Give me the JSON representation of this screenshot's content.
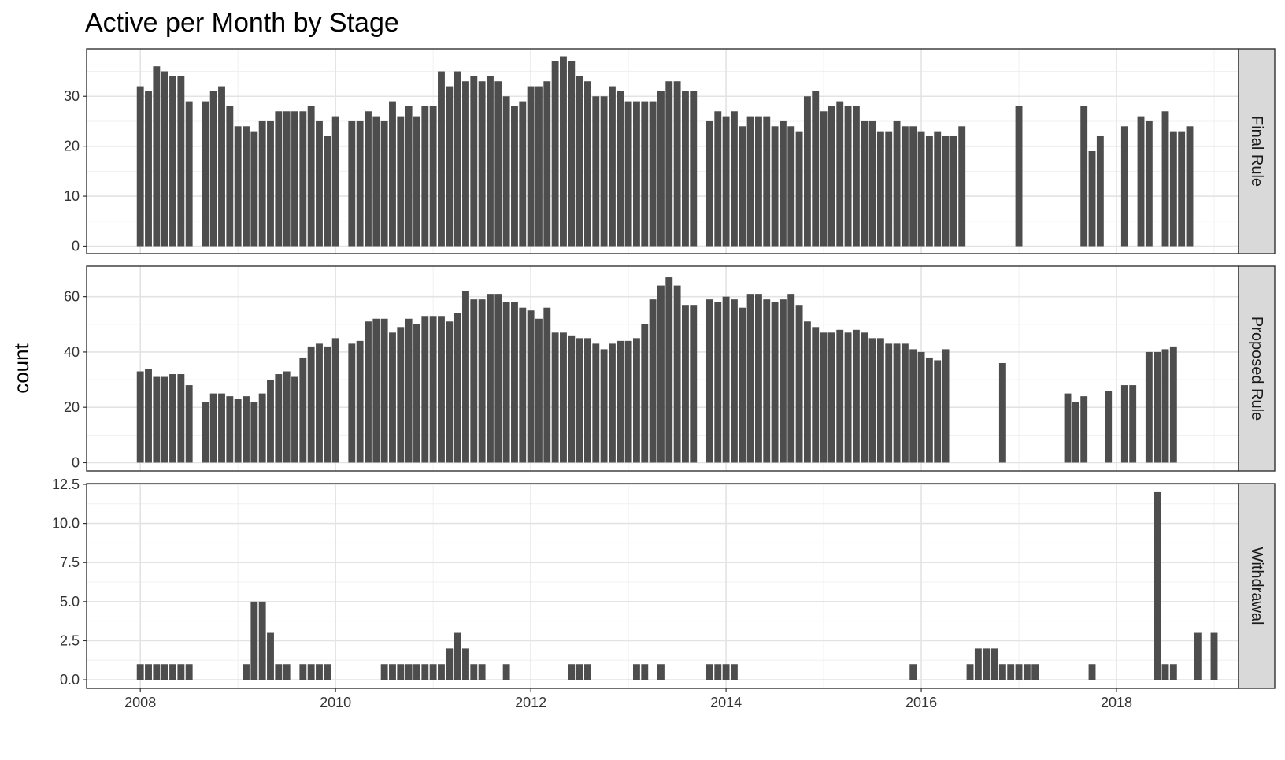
{
  "chart_data": {
    "type": "bar",
    "title": "Active per Month by Stage",
    "xlabel": "",
    "ylabel": "count",
    "facet_layout": "rows",
    "grid": true,
    "bar_color": "#4d4d4d",
    "strip_fill": "#d9d9d9",
    "xlim": [
      2007.45,
      2019.25
    ],
    "x_ticks": [
      2008,
      2010,
      2012,
      2014,
      2016,
      2018
    ],
    "x_tick_labels": [
      "2008",
      "2010",
      "2012",
      "2014",
      "2016",
      "2018"
    ],
    "panels": [
      {
        "strip": "Final Rule",
        "ylim": [
          -1.5,
          39.5
        ],
        "y_ticks": [
          0,
          10,
          20,
          30
        ],
        "y_tick_labels": [
          "0",
          "10",
          "20",
          "30"
        ],
        "start": [
          2008,
          1
        ],
        "values": [
          32,
          31,
          36,
          35,
          34,
          34,
          29,
          null,
          29,
          31,
          32,
          28,
          24,
          24,
          23,
          25,
          25,
          27,
          27,
          27,
          27,
          28,
          25,
          22,
          26,
          null,
          25,
          25,
          27,
          26,
          25,
          29,
          26,
          28,
          26,
          28,
          28,
          35,
          32,
          35,
          33,
          34,
          33,
          34,
          33,
          30,
          28,
          29,
          32,
          32,
          33,
          37,
          38,
          37,
          34,
          33,
          30,
          30,
          32,
          31,
          29,
          29,
          29,
          29,
          31,
          33,
          33,
          31,
          31,
          null,
          25,
          27,
          26,
          27,
          24,
          26,
          26,
          26,
          24,
          25,
          24,
          23,
          30,
          31,
          27,
          28,
          29,
          28,
          28,
          25,
          25,
          23,
          23,
          25,
          24,
          24,
          23,
          22,
          23,
          22,
          22,
          24,
          null,
          null,
          null,
          null,
          null,
          null,
          28,
          null,
          null,
          null,
          null,
          null,
          null,
          null,
          28,
          19,
          22,
          null,
          null,
          24,
          null,
          26,
          25,
          null,
          27,
          23,
          23,
          24
        ]
      },
      {
        "strip": "Proposed Rule",
        "ylim": [
          -3,
          71
        ],
        "y_ticks": [
          0,
          20,
          40,
          60
        ],
        "y_tick_labels": [
          "0",
          "20",
          "40",
          "60"
        ],
        "start": [
          2008,
          1
        ],
        "values": [
          33,
          34,
          31,
          31,
          32,
          32,
          28,
          null,
          22,
          25,
          25,
          24,
          23,
          24,
          22,
          25,
          30,
          32,
          33,
          31,
          38,
          42,
          43,
          42,
          45,
          null,
          43,
          44,
          51,
          52,
          52,
          47,
          49,
          52,
          50,
          53,
          53,
          53,
          51,
          54,
          62,
          59,
          59,
          61,
          61,
          58,
          58,
          56,
          55,
          52,
          56,
          47,
          47,
          46,
          45,
          45,
          43,
          41,
          43,
          44,
          44,
          45,
          50,
          59,
          64,
          67,
          64,
          57,
          57,
          null,
          59,
          58,
          60,
          59,
          56,
          61,
          61,
          59,
          58,
          59,
          61,
          57,
          51,
          49,
          47,
          47,
          48,
          47,
          48,
          47,
          45,
          45,
          43,
          43,
          43,
          41,
          40,
          38,
          37,
          41,
          null,
          null,
          null,
          null,
          null,
          null,
          36,
          null,
          null,
          null,
          null,
          null,
          null,
          null,
          25,
          22,
          24,
          null,
          null,
          26,
          null,
          28,
          28,
          null,
          40,
          40,
          41,
          42
        ]
      },
      {
        "strip": "Withdrawal",
        "ylim": [
          -0.55,
          12.55
        ],
        "y_ticks": [
          0,
          2.5,
          5,
          7.5,
          10,
          12.5
        ],
        "y_tick_labels": [
          "0.0",
          "2.5",
          "5.0",
          "7.5",
          "10.0",
          "12.5"
        ],
        "start": [
          2008,
          1
        ],
        "values": [
          1,
          1,
          1,
          1,
          1,
          1,
          1,
          null,
          null,
          null,
          null,
          null,
          null,
          1,
          5,
          5,
          3,
          1,
          1,
          null,
          1,
          1,
          1,
          1,
          null,
          null,
          null,
          null,
          null,
          null,
          1,
          1,
          1,
          1,
          1,
          1,
          1,
          1,
          2,
          3,
          2,
          1,
          1,
          null,
          null,
          1,
          null,
          null,
          null,
          null,
          null,
          null,
          null,
          1,
          1,
          1,
          null,
          null,
          null,
          null,
          null,
          1,
          1,
          null,
          1,
          null,
          null,
          null,
          null,
          null,
          1,
          1,
          1,
          1,
          null,
          null,
          null,
          null,
          null,
          null,
          null,
          null,
          null,
          null,
          null,
          null,
          null,
          null,
          null,
          null,
          null,
          null,
          null,
          null,
          null,
          1,
          null,
          null,
          null,
          null,
          null,
          null,
          1,
          2,
          2,
          2,
          1,
          1,
          1,
          1,
          1,
          null,
          null,
          null,
          null,
          null,
          null,
          1,
          null,
          null,
          null,
          null,
          null,
          null,
          null,
          12,
          1,
          1,
          null,
          null,
          3,
          null,
          3
        ]
      }
    ]
  }
}
